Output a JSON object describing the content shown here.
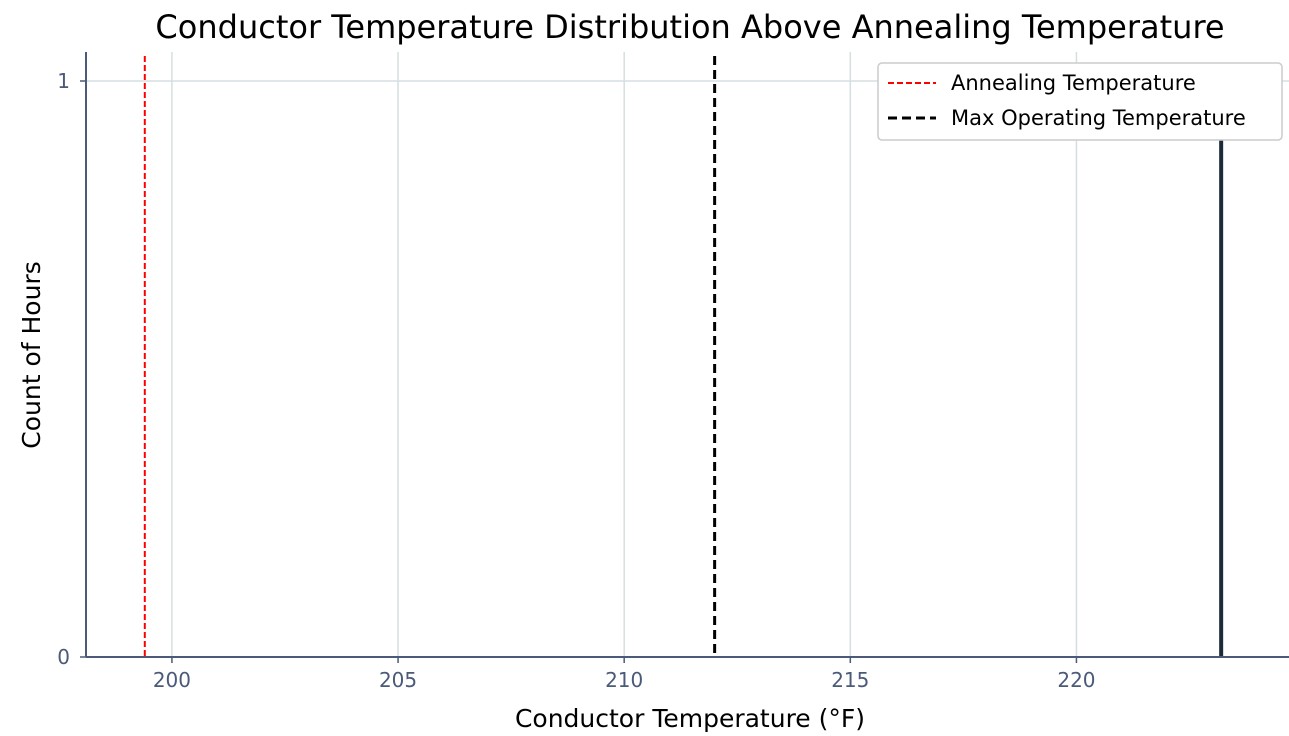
{
  "chart_data": {
    "type": "bar",
    "title": "Conductor Temperature Distribution Above Annealing Temperature",
    "xlabel": "Conductor Temperature (°F)",
    "ylabel": "Count of Hours",
    "xlim": [
      198.1,
      224.7
    ],
    "ylim": [
      0,
      1.05
    ],
    "x_ticks": [
      200,
      205,
      210,
      215,
      220
    ],
    "y_ticks": [
      0,
      1
    ],
    "grid": "vertical and horizontal at ticks",
    "bars": [
      {
        "x": 223.2,
        "value": 1
      }
    ],
    "reference_lines": [
      {
        "name": "Annealing Temperature",
        "x": 199.4,
        "style": "dashed",
        "color": "#ff0000"
      },
      {
        "name": "Max Operating Temperature",
        "x": 212.0,
        "style": "dashed",
        "color": "#000000"
      }
    ],
    "legend_position": "top-right",
    "colors": {
      "bar": "#1e2a3a",
      "axis": "#4a5a78",
      "grid": "#d5dfe0"
    }
  }
}
